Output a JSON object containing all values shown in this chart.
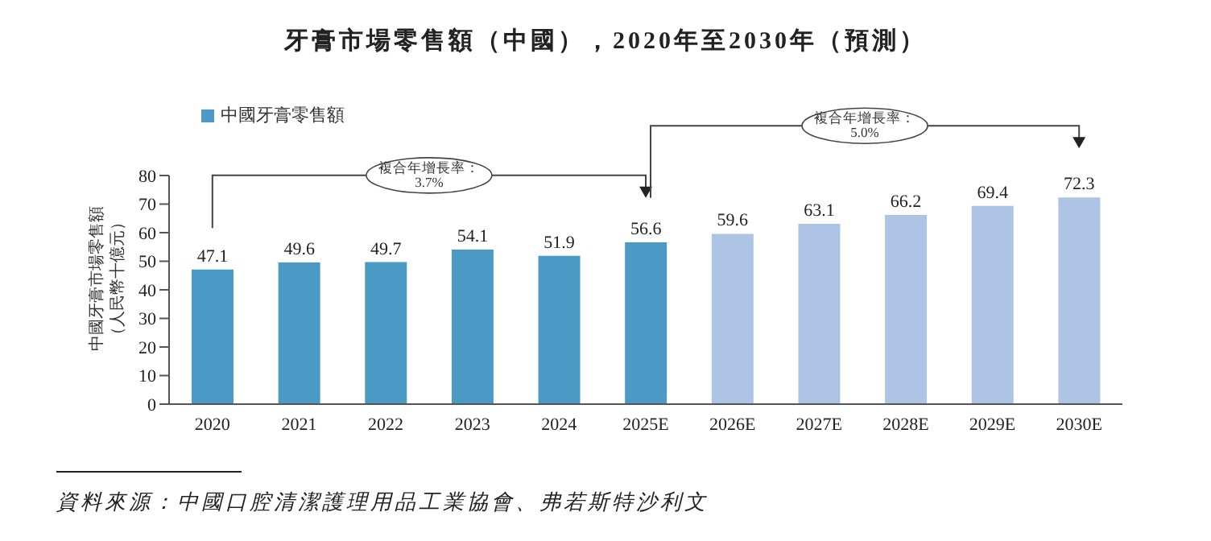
{
  "chart_data": {
    "type": "bar",
    "title": "牙膏市場零售額（中國），2020年至2030年（預測）",
    "ylabel": "中國牙膏市場零售額（人民幣十億元）",
    "categories": [
      "2020",
      "2021",
      "2022",
      "2023",
      "2024",
      "2025E",
      "2026E",
      "2027E",
      "2028E",
      "2029E",
      "2030E"
    ],
    "series": [
      {
        "name": "中國牙膏零售額",
        "color": "#4a9ac5",
        "values": [
          47.1,
          49.6,
          49.7,
          54.1,
          51.9,
          56.6,
          59.6,
          63.1,
          66.2,
          69.4,
          72.3
        ],
        "colors": [
          "#4a9ac5",
          "#4a9ac5",
          "#4a9ac5",
          "#4a9ac5",
          "#4a9ac5",
          "#4a9ac5",
          "#aec4e4",
          "#aec4e4",
          "#aec4e4",
          "#aec4e4",
          "#aec4e4"
        ]
      }
    ],
    "ylim": [
      0,
      80
    ],
    "yticks": [
      0,
      10,
      20,
      30,
      40,
      50,
      60,
      70,
      80
    ],
    "data_labels": true,
    "grid": false,
    "legend": "top left",
    "annotations": [
      "複合年增長率：\n3.7%",
      "複合年增長率：\n5.0%",
      "資料來源：中國口腔清潔護理用品工業協會、弗若斯特沙利文"
    ]
  }
}
